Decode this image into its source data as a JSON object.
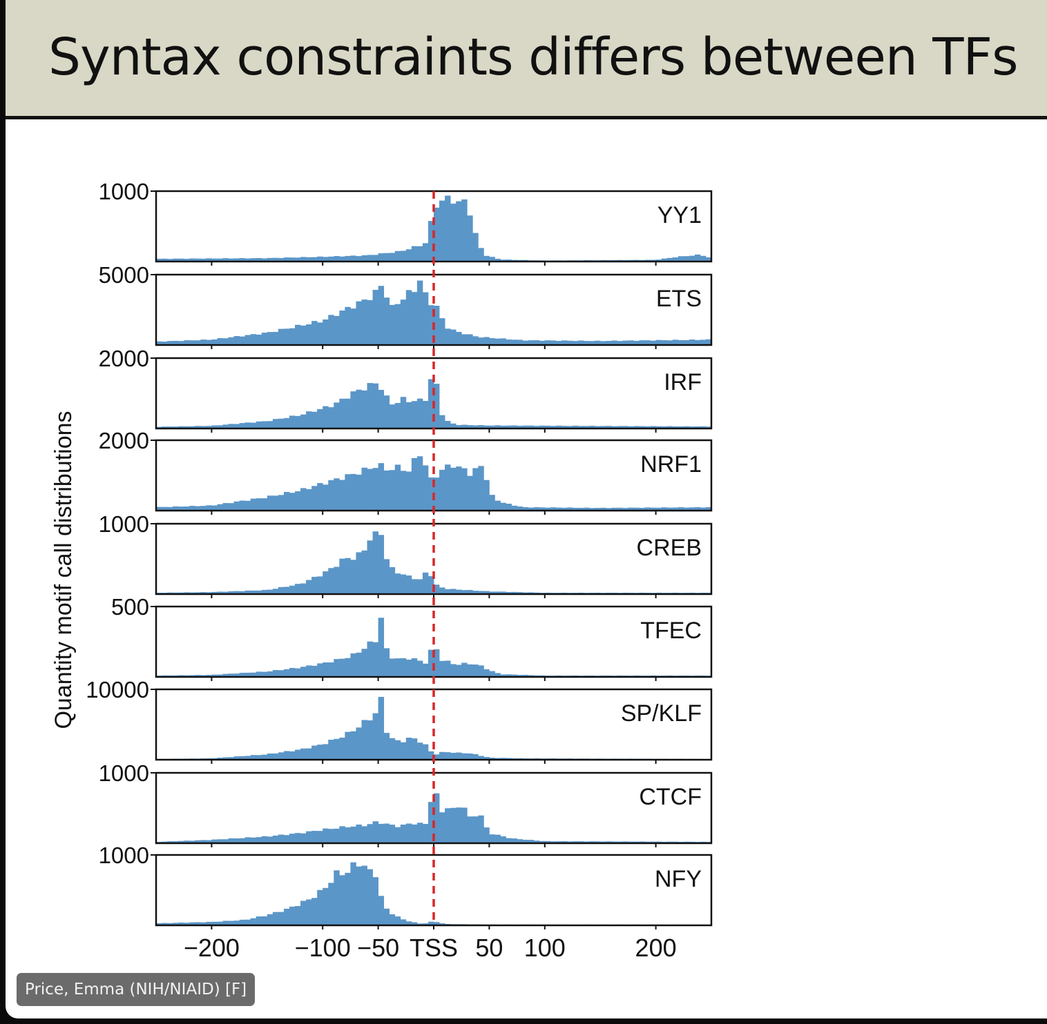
{
  "slide": {
    "title": "Syntax constraints differs between TFs",
    "presenter_label": "Price, Emma (NIH/NIAID) [F]"
  },
  "colors": {
    "bars": "#5b96c8",
    "tss_line": "#d62728",
    "panel_border": "#111111"
  },
  "chart_data": {
    "type": "bar",
    "subtype": "stacked histograms (shared x axis)",
    "ylabel": "Quantity motif call distributions",
    "xlim": [
      -250,
      250
    ],
    "x_ticks": [
      {
        "value": -200,
        "label": "−200"
      },
      {
        "value": -100,
        "label": "−100"
      },
      {
        "value": -50,
        "label": "−50"
      },
      {
        "value": 0,
        "label": "TSS"
      },
      {
        "value": 50,
        "label": "50"
      },
      {
        "value": 100,
        "label": "100"
      },
      {
        "value": 200,
        "label": "200"
      }
    ],
    "reference_line": {
      "x": 0,
      "style": "dashed",
      "label": "TSS"
    },
    "bin_width": 5,
    "panels": [
      {
        "name": "YY1",
        "y_tick_label": "1000",
        "y_tick_value": 1000,
        "profile": [
          [
            -250,
            40
          ],
          [
            -150,
            50
          ],
          [
            -100,
            70
          ],
          [
            -60,
            90
          ],
          [
            -30,
            150
          ],
          [
            -10,
            250
          ],
          [
            -5,
            300
          ],
          [
            0,
            830
          ],
          [
            15,
            950
          ],
          [
            25,
            830
          ],
          [
            30,
            960
          ],
          [
            35,
            500
          ],
          [
            40,
            300
          ],
          [
            45,
            100
          ],
          [
            60,
            30
          ],
          [
            100,
            15
          ],
          [
            200,
            25
          ],
          [
            220,
            70
          ],
          [
            240,
            100
          ],
          [
            250,
            50
          ]
        ]
      },
      {
        "name": "ETS",
        "y_tick_label": "5000",
        "y_tick_value": 5000,
        "profile": [
          [
            -250,
            250
          ],
          [
            -200,
            400
          ],
          [
            -150,
            900
          ],
          [
            -100,
            1800
          ],
          [
            -75,
            2800
          ],
          [
            -60,
            3400
          ],
          [
            -50,
            4000
          ],
          [
            -45,
            4800
          ],
          [
            -40,
            2600
          ],
          [
            -30,
            3300
          ],
          [
            -15,
            4300
          ],
          [
            -12,
            4900
          ],
          [
            -5,
            3000
          ],
          [
            0,
            3300
          ],
          [
            5,
            2400
          ],
          [
            10,
            1400
          ],
          [
            20,
            1000
          ],
          [
            40,
            600
          ],
          [
            80,
            350
          ],
          [
            150,
            300
          ],
          [
            250,
            400
          ]
        ]
      },
      {
        "name": "IRF",
        "y_tick_label": "2000",
        "y_tick_value": 2000,
        "profile": [
          [
            -250,
            50
          ],
          [
            -200,
            80
          ],
          [
            -150,
            220
          ],
          [
            -120,
            400
          ],
          [
            -90,
            700
          ],
          [
            -70,
            1100
          ],
          [
            -55,
            1300
          ],
          [
            -50,
            1400
          ],
          [
            -45,
            1000
          ],
          [
            -35,
            650
          ],
          [
            -30,
            900
          ],
          [
            -20,
            800
          ],
          [
            -10,
            850
          ],
          [
            -5,
            900
          ],
          [
            0,
            1950
          ],
          [
            5,
            600
          ],
          [
            10,
            250
          ],
          [
            20,
            110
          ],
          [
            50,
            90
          ],
          [
            250,
            60
          ]
        ]
      },
      {
        "name": "NRF1",
        "y_tick_label": "2000",
        "y_tick_value": 2000,
        "profile": [
          [
            -250,
            100
          ],
          [
            -200,
            150
          ],
          [
            -150,
            400
          ],
          [
            -120,
            600
          ],
          [
            -90,
            900
          ],
          [
            -70,
            1100
          ],
          [
            -50,
            1350
          ],
          [
            -40,
            1200
          ],
          [
            -30,
            1300
          ],
          [
            -20,
            1100
          ],
          [
            -15,
            1850
          ],
          [
            -10,
            1600
          ],
          [
            -5,
            1000
          ],
          [
            0,
            900
          ],
          [
            5,
            1200
          ],
          [
            10,
            1100
          ],
          [
            15,
            1600
          ],
          [
            20,
            1100
          ],
          [
            25,
            1350
          ],
          [
            30,
            1200
          ],
          [
            35,
            950
          ],
          [
            40,
            1400
          ],
          [
            45,
            1350
          ],
          [
            50,
            500
          ],
          [
            60,
            250
          ],
          [
            80,
            100
          ],
          [
            150,
            80
          ],
          [
            250,
            100
          ]
        ]
      },
      {
        "name": "CREB",
        "y_tick_label": "1000",
        "y_tick_value": 1000,
        "profile": [
          [
            -250,
            20
          ],
          [
            -200,
            30
          ],
          [
            -150,
            60
          ],
          [
            -120,
            150
          ],
          [
            -100,
            300
          ],
          [
            -90,
            400
          ],
          [
            -80,
            530
          ],
          [
            -70,
            540
          ],
          [
            -60,
            700
          ],
          [
            -55,
            950
          ],
          [
            -52,
            850
          ],
          [
            -48,
            970
          ],
          [
            -45,
            650
          ],
          [
            -40,
            400
          ],
          [
            -30,
            300
          ],
          [
            -20,
            250
          ],
          [
            -10,
            200
          ],
          [
            -5,
            420
          ],
          [
            0,
            150
          ],
          [
            10,
            80
          ],
          [
            30,
            60
          ],
          [
            50,
            40
          ],
          [
            100,
            20
          ],
          [
            250,
            20
          ]
        ]
      },
      {
        "name": "TFEC",
        "y_tick_label": "500",
        "y_tick_value": 500,
        "profile": [
          [
            -250,
            10
          ],
          [
            -200,
            15
          ],
          [
            -150,
            40
          ],
          [
            -120,
            70
          ],
          [
            -100,
            100
          ],
          [
            -80,
            140
          ],
          [
            -70,
            170
          ],
          [
            -60,
            230
          ],
          [
            -55,
            260
          ],
          [
            -50,
            280
          ],
          [
            -48,
            480
          ],
          [
            -45,
            250
          ],
          [
            -40,
            150
          ],
          [
            -30,
            130
          ],
          [
            -20,
            140
          ],
          [
            -10,
            110
          ],
          [
            -5,
            100
          ],
          [
            0,
            280
          ],
          [
            5,
            130
          ],
          [
            10,
            120
          ],
          [
            20,
            90
          ],
          [
            30,
            100
          ],
          [
            40,
            90
          ],
          [
            50,
            50
          ],
          [
            60,
            20
          ],
          [
            100,
            10
          ],
          [
            250,
            10
          ]
        ]
      },
      {
        "name": "SP/KLF",
        "y_tick_label": "10000",
        "y_tick_value": 10000,
        "profile": [
          [
            -250,
            100
          ],
          [
            -200,
            200
          ],
          [
            -150,
            800
          ],
          [
            -120,
            1500
          ],
          [
            -100,
            2300
          ],
          [
            -80,
            3600
          ],
          [
            -70,
            4600
          ],
          [
            -60,
            5800
          ],
          [
            -55,
            6500
          ],
          [
            -50,
            7300
          ],
          [
            -48,
            9500
          ],
          [
            -45,
            5200
          ],
          [
            -40,
            3300
          ],
          [
            -30,
            2600
          ],
          [
            -20,
            3300
          ],
          [
            -10,
            2500
          ],
          [
            -5,
            1800
          ],
          [
            0,
            700
          ],
          [
            10,
            1200
          ],
          [
            20,
            1000
          ],
          [
            30,
            1000
          ],
          [
            40,
            700
          ],
          [
            50,
            300
          ],
          [
            80,
            200
          ],
          [
            150,
            150
          ],
          [
            250,
            100
          ]
        ]
      },
      {
        "name": "CTCF",
        "y_tick_label": "1000",
        "y_tick_value": 1000,
        "profile": [
          [
            -250,
            20
          ],
          [
            -200,
            50
          ],
          [
            -150,
            100
          ],
          [
            -120,
            150
          ],
          [
            -100,
            200
          ],
          [
            -80,
            240
          ],
          [
            -60,
            270
          ],
          [
            -50,
            320
          ],
          [
            -40,
            270
          ],
          [
            -30,
            250
          ],
          [
            -20,
            300
          ],
          [
            -10,
            280
          ],
          [
            -5,
            300
          ],
          [
            0,
            980
          ],
          [
            5,
            400
          ],
          [
            10,
            550
          ],
          [
            20,
            470
          ],
          [
            25,
            650
          ],
          [
            30,
            400
          ],
          [
            35,
            350
          ],
          [
            40,
            500
          ],
          [
            45,
            300
          ],
          [
            50,
            150
          ],
          [
            70,
            70
          ],
          [
            100,
            30
          ],
          [
            250,
            20
          ]
        ]
      },
      {
        "name": "NFY",
        "y_tick_label": "1000",
        "y_tick_value": 1000,
        "profile": [
          [
            -250,
            30
          ],
          [
            -200,
            50
          ],
          [
            -170,
            80
          ],
          [
            -150,
            150
          ],
          [
            -130,
            250
          ],
          [
            -110,
            400
          ],
          [
            -100,
            520
          ],
          [
            -90,
            700
          ],
          [
            -85,
            820
          ],
          [
            -80,
            730
          ],
          [
            -75,
            850
          ],
          [
            -70,
            900
          ],
          [
            -65,
            950
          ],
          [
            -60,
            800
          ],
          [
            -55,
            780
          ],
          [
            -50,
            750
          ],
          [
            -48,
            450
          ],
          [
            -45,
            280
          ],
          [
            -40,
            200
          ],
          [
            -30,
            100
          ],
          [
            -20,
            50
          ],
          [
            -10,
            20
          ],
          [
            0,
            60
          ],
          [
            10,
            20
          ],
          [
            50,
            10
          ],
          [
            250,
            10
          ]
        ]
      }
    ]
  }
}
